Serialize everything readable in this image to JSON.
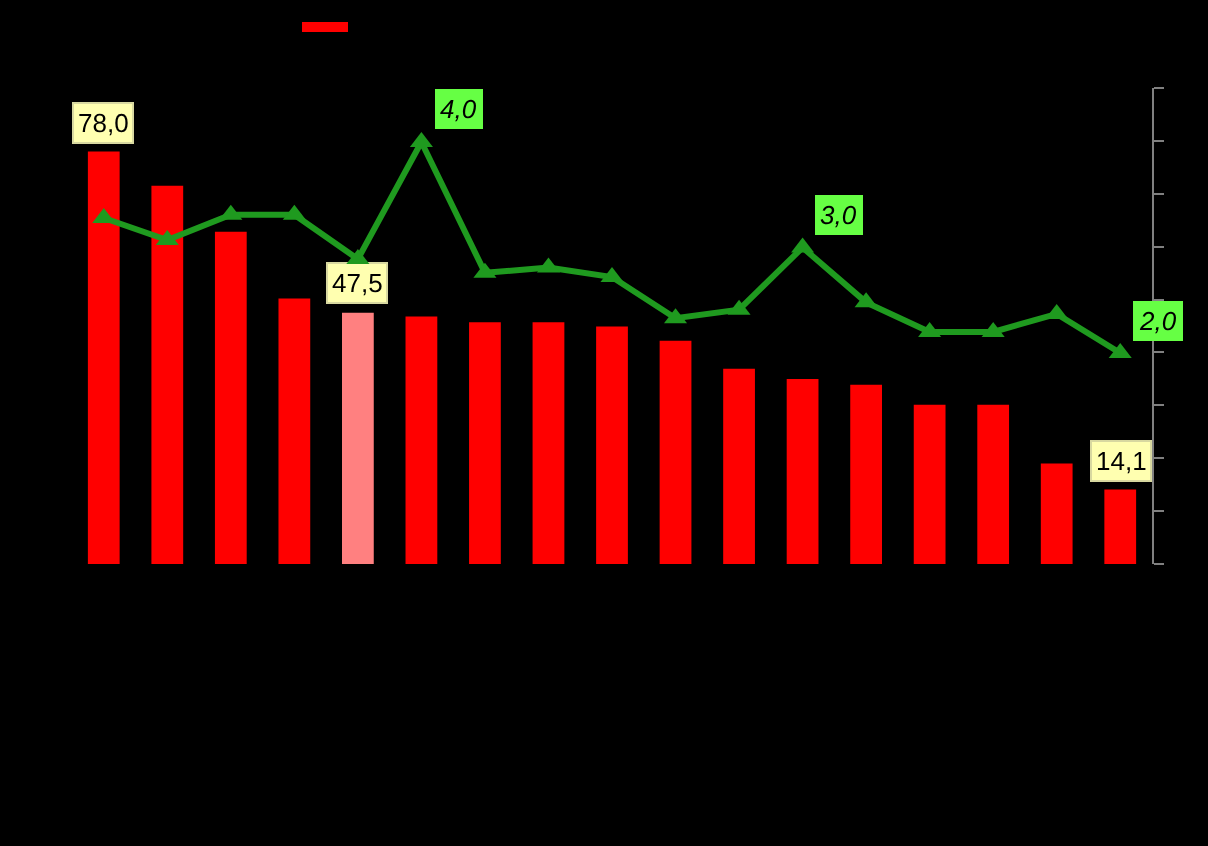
{
  "chart_data": [
    {
      "type": "bar",
      "categories": [
        null,
        null,
        null,
        null,
        null,
        null,
        null,
        null,
        null,
        null,
        null,
        null,
        null,
        null,
        null,
        null,
        null
      ],
      "colors": [
        "#ff0000",
        "#ff0000",
        "#ff0000",
        "#ff0000",
        "#ff8080",
        "#ff0000",
        "#ff0000",
        "#ff0000",
        "#ff0000",
        "#ff0000",
        "#ff0000",
        "#ff0000",
        "#ff0000",
        "#ff0000",
        "#ff0000",
        "#ff0000",
        "#ff0000"
      ],
      "values": [
        78.0,
        71.5,
        62.8,
        50.2,
        47.5,
        46.8,
        45.7,
        45.7,
        44.9,
        42.2,
        36.9,
        35.0,
        33.9,
        30.1,
        30.1,
        19.0,
        14.1
      ],
      "value_labels": [
        "78,0",
        null,
        null,
        null,
        "47,5",
        null,
        null,
        null,
        null,
        null,
        null,
        null,
        null,
        null,
        null,
        null,
        "14,1"
      ],
      "ylim": [
        0,
        90
      ],
      "yticks": [
        {
          "value": 0,
          "label": null
        },
        {
          "value": 10,
          "label": null
        },
        {
          "value": 20,
          "label": null
        },
        {
          "value": 30,
          "label": null
        },
        {
          "value": 40,
          "label": null
        },
        {
          "value": 50,
          "label": null
        },
        {
          "value": 60,
          "label": null
        },
        {
          "value": 70,
          "label": null
        },
        {
          "value": 80,
          "label": null
        },
        {
          "value": 90,
          "label": null
        }
      ]
    },
    {
      "type": "line",
      "categories": [
        null,
        null,
        null,
        null,
        null,
        null,
        null,
        null,
        null,
        null,
        null,
        null,
        null,
        null,
        null,
        null,
        null
      ],
      "color": "#1f9a1f",
      "marker": "triangle",
      "line_style": "solid",
      "values": [
        3.28,
        3.07,
        3.31,
        3.31,
        2.89,
        4.0,
        2.76,
        2.81,
        2.72,
        2.33,
        2.41,
        3.0,
        2.48,
        2.2,
        2.2,
        2.37,
        2.0
      ],
      "value_labels": [
        null,
        null,
        null,
        null,
        null,
        "4,0",
        null,
        null,
        null,
        null,
        null,
        "3,0",
        null,
        null,
        null,
        null,
        "2,0"
      ]
    }
  ]
}
